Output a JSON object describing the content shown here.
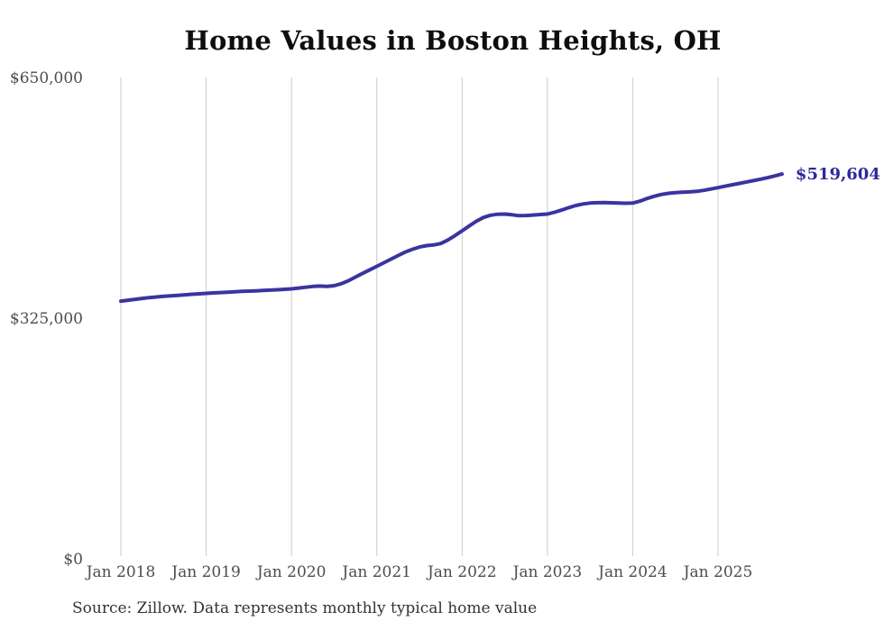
{
  "page": {
    "background_color": "#ffffff"
  },
  "chart_data": {
    "type": "line",
    "title": "Home Values in Boston Heights, OH",
    "source_note": "Source: Zillow. Data represents monthly typical home value",
    "series_name": "Monthly typical home value",
    "end_label": "$519,604",
    "end_value": 519604,
    "line_color": "#3a34a0",
    "end_label_color": "#2f2a99",
    "grid_color": "#cccccc",
    "axis_label_color": "#4d4d4d",
    "ylim": [
      0,
      650000
    ],
    "grid": "vertical-only",
    "legend": "none",
    "y_ticks": [
      {
        "label": "$0",
        "value": 0
      },
      {
        "label": "$325,000",
        "value": 325000
      },
      {
        "label": "$650,000",
        "value": 650000
      }
    ],
    "x_ticks": [
      "Jan 2018",
      "Jan 2019",
      "Jan 2020",
      "Jan 2021",
      "Jan 2022",
      "Jan 2023",
      "Jan 2024",
      "Jan 2025"
    ],
    "start_month": "2018-01",
    "end_month": "2025-10",
    "values": [
      348000,
      349200,
      350400,
      351600,
      352700,
      353600,
      354400,
      355100,
      355800,
      356500,
      357200,
      357900,
      358500,
      359100,
      359600,
      360100,
      360600,
      361100,
      361500,
      361900,
      362400,
      362900,
      363400,
      364000,
      364600,
      365600,
      366800,
      367800,
      368300,
      368000,
      368800,
      371500,
      375500,
      380500,
      385500,
      390300,
      395000,
      399800,
      404700,
      409600,
      414200,
      418000,
      421000,
      423000,
      423800,
      425800,
      430500,
      436500,
      443000,
      449500,
      455800,
      461000,
      464000,
      465300,
      465600,
      464600,
      463400,
      463600,
      464300,
      465000,
      465600,
      468000,
      471000,
      474200,
      477200,
      479200,
      480400,
      480900,
      481000,
      480800,
      480400,
      480200,
      480400,
      483000,
      486500,
      489600,
      492000,
      493600,
      494600,
      495100,
      495500,
      496300,
      497600,
      499400,
      501300,
      503200,
      505100,
      507000,
      508900,
      510800,
      512700,
      514800,
      517100,
      519604
    ]
  }
}
